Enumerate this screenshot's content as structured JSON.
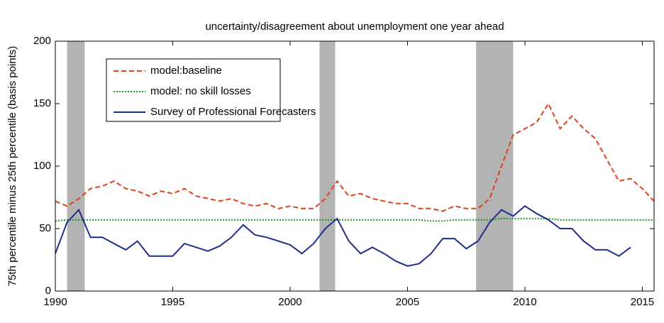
{
  "chart_data": {
    "type": "line",
    "title": "uncertainty/disagreement about unemployment one year ahead",
    "y_label": "75th percentile minus 25th percentile (basis points)",
    "x": [
      1990.0,
      1990.5,
      1991.0,
      1991.5,
      1992.0,
      1992.5,
      1993.0,
      1993.5,
      1994.0,
      1994.5,
      1995.0,
      1995.5,
      1996.0,
      1996.5,
      1997.0,
      1997.5,
      1998.0,
      1998.5,
      1999.0,
      1999.5,
      2000.0,
      2000.5,
      2001.0,
      2001.5,
      2002.0,
      2002.5,
      2003.0,
      2003.5,
      2004.0,
      2004.5,
      2005.0,
      2005.5,
      2006.0,
      2006.5,
      2007.0,
      2007.5,
      2008.0,
      2008.5,
      2009.0,
      2009.5,
      2010.0,
      2010.5,
      2011.0,
      2011.5,
      2012.0,
      2012.5,
      2013.0,
      2013.5,
      2014.0,
      2014.5,
      2015.0,
      2015.5
    ],
    "series": [
      {
        "name": "model:baseline",
        "color": "#e0401a",
        "dash": "dashed",
        "values": [
          72,
          68,
          74,
          82,
          84,
          88,
          82,
          80,
          76,
          80,
          78,
          82,
          76,
          74,
          72,
          74,
          70,
          68,
          70,
          66,
          68,
          66,
          66,
          74,
          88,
          76,
          78,
          74,
          72,
          70,
          70,
          66,
          66,
          64,
          68,
          66,
          66,
          74,
          100,
          125,
          130,
          135,
          150,
          130,
          140,
          130,
          122,
          105,
          88,
          90,
          82,
          72
        ]
      },
      {
        "name": "model: no skill losses",
        "color": "#1a9a1a",
        "dash": "dotted",
        "values": [
          56,
          57,
          57,
          57,
          57,
          57,
          57,
          57,
          57,
          57,
          57,
          57,
          57,
          57,
          57,
          57,
          57,
          57,
          57,
          57,
          57,
          57,
          57,
          57,
          57,
          57,
          57,
          57,
          57,
          57,
          57,
          57,
          56,
          56,
          57,
          57,
          57,
          57,
          58,
          58,
          58,
          58,
          58,
          57,
          57,
          57,
          57,
          57,
          57,
          57,
          57,
          57
        ]
      },
      {
        "name": "Survey of Professional Forecasters",
        "color": "#1f2d8f",
        "dash": "solid",
        "values": [
          30,
          55,
          65,
          43,
          43,
          38,
          33,
          40,
          28,
          28,
          28,
          38,
          35,
          32,
          36,
          43,
          53,
          45,
          43,
          40,
          37,
          30,
          38,
          50,
          58,
          40,
          30,
          35,
          30,
          24,
          20,
          22,
          30,
          42,
          42,
          34,
          40,
          55,
          65,
          60,
          68,
          62,
          57,
          50,
          50,
          40,
          33,
          33,
          28,
          35,
          null,
          null
        ]
      }
    ],
    "shaded_regions": [
      [
        1990.5,
        1991.25
      ],
      [
        2001.25,
        2001.92
      ],
      [
        2007.92,
        2009.5
      ]
    ],
    "shade_color": "#b3b3b3",
    "xlim": [
      1990,
      2015.5
    ],
    "xticks": [
      1990,
      1995,
      2000,
      2005,
      2010,
      2015
    ],
    "ylim": [
      0,
      200
    ],
    "yticks": [
      0,
      50,
      100,
      150,
      200
    ],
    "grid": false,
    "legend": "upper left"
  }
}
